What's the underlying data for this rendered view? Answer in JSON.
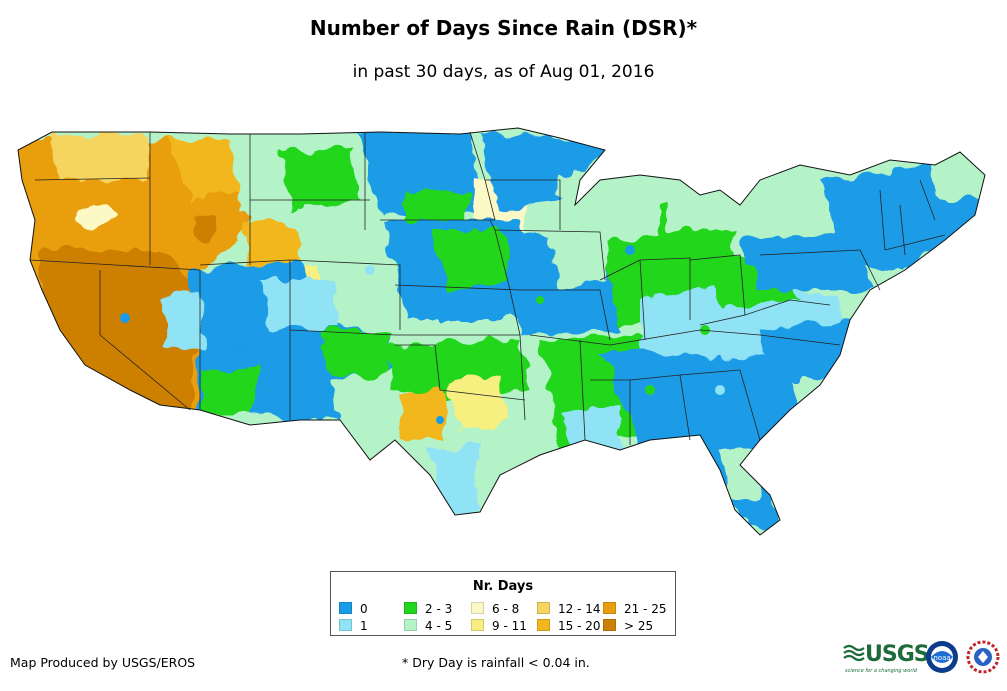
{
  "title": "Number of Days Since Rain (DSR)*",
  "subtitle": "in past 30 days, as of Aug 01, 2016",
  "legend": {
    "title": "Nr. Days",
    "items": [
      {
        "label": "0",
        "color": "#1a9be6"
      },
      {
        "label": "1",
        "color": "#8fe3f5"
      },
      {
        "label": "2 - 3",
        "color": "#22d61e"
      },
      {
        "label": "4 - 5",
        "color": "#b4f2c8"
      },
      {
        "label": "6 - 8",
        "color": "#fdf9c6"
      },
      {
        "label": "9 - 11",
        "color": "#f7ef80"
      },
      {
        "label": "12 - 14",
        "color": "#f5d560"
      },
      {
        "label": "15 - 20",
        "color": "#f2b71d"
      },
      {
        "label": "21 - 25",
        "color": "#e89e0e"
      },
      {
        "label": "> 25",
        "color": "#cd8006"
      }
    ]
  },
  "footer": {
    "producer": "Map Produced by USGS/EROS",
    "footnote": "* Dry Day is rainfall < 0.04 in."
  },
  "logos": {
    "usgs": "USGS",
    "usgs_tagline": "science for a changing world",
    "noaa": "noaa"
  }
}
